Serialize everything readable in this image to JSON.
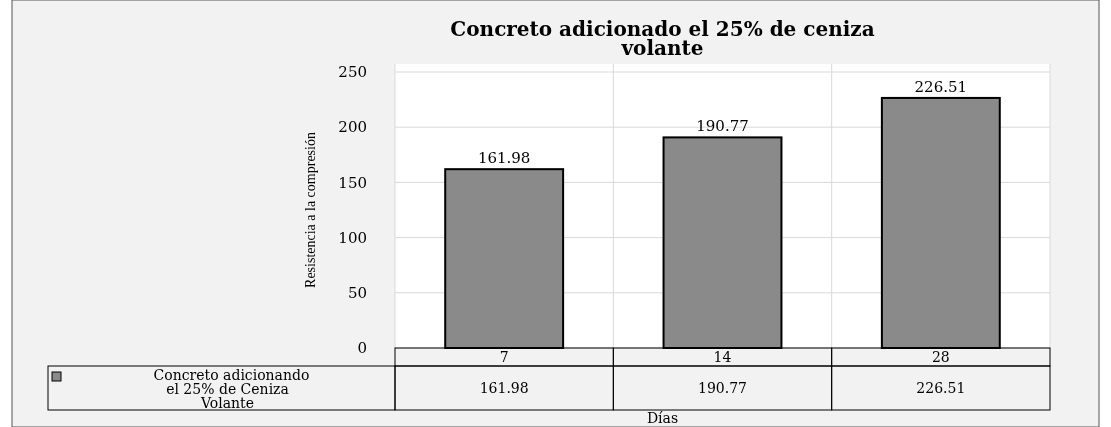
{
  "chart_data": {
    "type": "bar",
    "title": "Concreto adicionado el 25% de ceniza volante",
    "xlabel": "Días",
    "ylabel": "Resistencia a la compresión",
    "categories": [
      "7",
      "14",
      "28"
    ],
    "series": [
      {
        "name": "Concreto adicionando el 25% de Ceniza Volante",
        "color": "#8a8a8a",
        "values": [
          161.98,
          190.77,
          226.51
        ]
      }
    ],
    "annotations": [
      "161.98",
      "190.77",
      "226.51"
    ],
    "ylim": [
      0,
      250
    ],
    "yticks": [
      0,
      50,
      100,
      150,
      200,
      250
    ],
    "grid": true,
    "data_labels": true,
    "legend": "bottom left"
  }
}
